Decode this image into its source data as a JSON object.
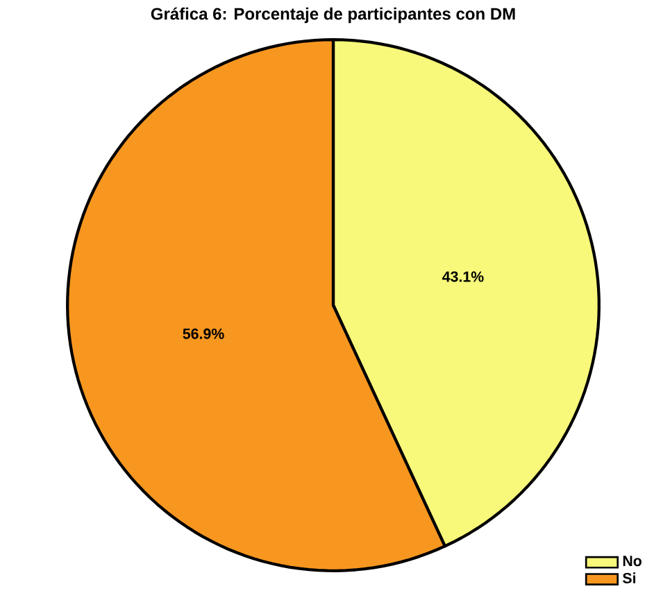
{
  "chart_data": {
    "type": "pie",
    "title": "Gráfica 6: Porcentaje de participantes con DM",
    "categories": [
      "No",
      "Si"
    ],
    "values": [
      43.1,
      56.9
    ],
    "colors": [
      "#f8f87a",
      "#f7971f"
    ],
    "value_labels": [
      "43.1%",
      "56.9%"
    ],
    "legend": "bottom right"
  }
}
